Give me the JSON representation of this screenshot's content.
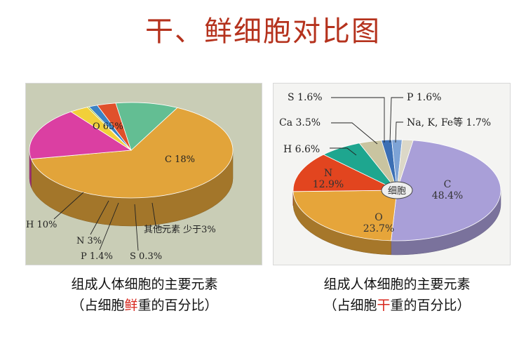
{
  "title": "干、鲜细胞对比图",
  "chart_data": [
    {
      "type": "pie",
      "caption_line1": "组成人体细胞的主要元素",
      "caption_line2_prefix": "（占细胞",
      "caption_line2_highlight": "鲜",
      "caption_line2_suffix": "重的百分比）",
      "slices": [
        {
          "label": "O 65%",
          "value": 65,
          "color": "#e2a43a"
        },
        {
          "label": "C 18%",
          "value": 18,
          "color": "#db3fa2"
        },
        {
          "label": "其他元素 少于3%",
          "value": 3,
          "color": "#f2d03a"
        },
        {
          "label": "S 0.3%",
          "value": 0.3,
          "color": "#9fc235"
        },
        {
          "label": "P 1.4%",
          "value": 1.4,
          "color": "#3b82c4"
        },
        {
          "label": "N 3%",
          "value": 3,
          "color": "#e0502b"
        },
        {
          "label": "H 10%",
          "value": 10,
          "color": "#63be93"
        }
      ]
    },
    {
      "type": "pie",
      "center_label": "细胞",
      "caption_line1": "组成人体细胞的主要元素",
      "caption_line2_prefix": "（占细胞",
      "caption_line2_highlight": "干",
      "caption_line2_suffix": "重的百分比）",
      "slices": [
        {
          "label": "C 48.4%",
          "value": 48.4,
          "color": "#a99fd8"
        },
        {
          "label": "O 23.7%",
          "value": 23.7,
          "color": "#e6a53a"
        },
        {
          "label": "N 12.9%",
          "value": 12.9,
          "color": "#e2451f"
        },
        {
          "label": "H 6.6%",
          "value": 6.6,
          "color": "#1ea68f"
        },
        {
          "label": "Ca 3.5%",
          "value": 3.5,
          "color": "#c9c4a0"
        },
        {
          "label": "S 1.6%",
          "value": 1.6,
          "color": "#3b6fb4"
        },
        {
          "label": "P 1.6%",
          "value": 1.6,
          "color": "#7da3d6"
        },
        {
          "label": "Na, K, Fe等 1.7%",
          "value": 1.7,
          "color": "#dcd8c8"
        }
      ]
    }
  ]
}
